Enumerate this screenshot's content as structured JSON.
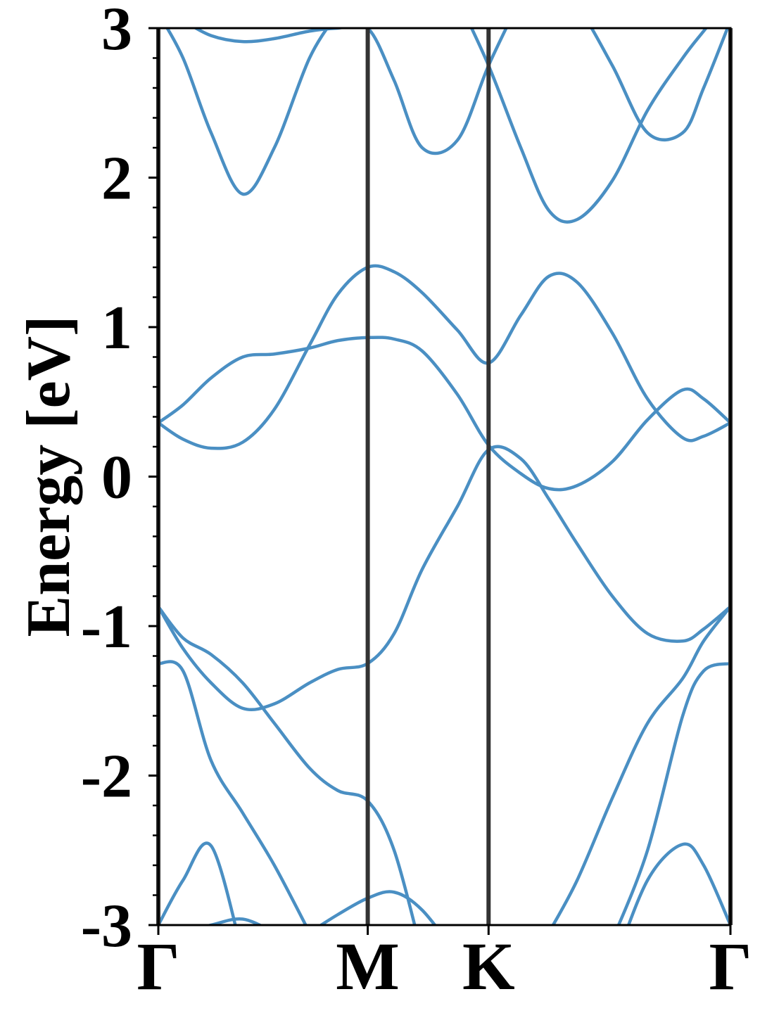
{
  "chart_data": {
    "type": "line",
    "ylabel": "Energy [eV]",
    "x": [
      0,
      0.118,
      0.252,
      0.403,
      0.554,
      0.722,
      0.857,
      1.0,
      1.126,
      1.26,
      1.428,
      1.577,
      1.731,
      1.865,
      2.0,
      2.168,
      2.336,
      2.504,
      2.604,
      2.732
    ],
    "xlim": [
      0,
      2.732
    ],
    "xticks": [
      {
        "value": 0,
        "label": "Γ"
      },
      {
        "value": 1.0,
        "label": "M"
      },
      {
        "value": 1.577,
        "label": "K"
      },
      {
        "value": 2.732,
        "label": "Γ"
      }
    ],
    "ylim": [
      -3,
      3
    ],
    "yticks": [
      -3,
      -2,
      -1,
      0,
      1,
      2,
      3
    ],
    "yminorticks": [
      -2.8,
      -2.6,
      -2.4,
      -2.2,
      -1.8,
      -1.6,
      -1.4,
      -1.2,
      -0.8,
      -0.6,
      -0.4,
      -0.2,
      0.2,
      0.4,
      0.6,
      0.8,
      1.2,
      1.4,
      1.6,
      1.8,
      2.2,
      2.4,
      2.6,
      2.8
    ],
    "line_color": "#333333",
    "series": [
      {
        "color": "#4a8fc3",
        "values": [
          0.36,
          0.25,
          0.19,
          0.23,
          0.45,
          0.88,
          1.22,
          1.4,
          1.37,
          1.23,
          0.98,
          0.76,
          1.08,
          1.34,
          1.3,
          0.96,
          0.52,
          0.26,
          0.27,
          0.36
        ]
      },
      {
        "color": "#4a8fc3",
        "values": [
          0.36,
          0.48,
          0.66,
          0.8,
          0.82,
          0.86,
          0.91,
          0.93,
          0.92,
          0.84,
          0.55,
          0.21,
          0.02,
          -0.08,
          -0.06,
          0.1,
          0.38,
          0.58,
          0.52,
          0.36
        ]
      },
      {
        "color": "#4a8fc3",
        "values": [
          -0.87,
          -1.08,
          -1.19,
          -1.38,
          -1.65,
          -1.95,
          -2.1,
          -2.17,
          -2.5,
          -3.2,
          null,
          null,
          null,
          null,
          null,
          null,
          null,
          null,
          null,
          null
        ]
      },
      {
        "color": "#4a8fc3",
        "values": [
          -0.87,
          -1.15,
          -1.38,
          -1.55,
          -1.52,
          -1.38,
          -1.29,
          -1.25,
          -1.05,
          -0.62,
          -0.2,
          0.18,
          0.12,
          -0.15,
          -0.45,
          -0.8,
          -1.05,
          -1.1,
          -1.02,
          -0.87
        ]
      },
      {
        "color": "#4a8fc3",
        "values": [
          -1.25,
          -1.3,
          -1.9,
          -2.25,
          -2.6,
          -3.05,
          null,
          null,
          null,
          null,
          null,
          null,
          null,
          null,
          null,
          -3.1,
          -2.5,
          -1.6,
          -1.3,
          -1.25
        ]
      },
      {
        "color": "#4a8fc3",
        "values": [
          null,
          null,
          null,
          null,
          null,
          null,
          null,
          null,
          null,
          null,
          null,
          null,
          null,
          -3.05,
          -2.7,
          -2.15,
          -1.65,
          -1.35,
          -1.1,
          -0.87
        ]
      },
      {
        "color": "#4a8fc3",
        "values": [
          -3.0,
          -2.7,
          -2.47,
          -3.2,
          null,
          null,
          null,
          null,
          null,
          null,
          null,
          null,
          null,
          null,
          null,
          null,
          null,
          null,
          null,
          null
        ]
      },
      {
        "color": "#4a8fc3",
        "values": [
          null,
          -3.05,
          -3.0,
          -2.96,
          -3.05,
          null,
          null,
          null,
          null,
          null,
          null,
          null,
          null,
          null,
          null,
          null,
          null,
          null,
          null,
          null
        ]
      },
      {
        "color": "#4a8fc3",
        "values": [
          null,
          null,
          null,
          null,
          null,
          -3.05,
          -2.93,
          -2.82,
          -2.78,
          -2.9,
          -3.2,
          null,
          null,
          null,
          null,
          null,
          null,
          null,
          null,
          null
        ]
      },
      {
        "color": "#4a8fc3",
        "values": [
          null,
          null,
          null,
          null,
          null,
          null,
          null,
          null,
          null,
          null,
          null,
          null,
          null,
          null,
          null,
          -3.3,
          -2.7,
          -2.46,
          -2.6,
          -3.0
        ]
      },
      {
        "color": "#4a8fc3",
        "values": [
          3.1,
          2.8,
          2.3,
          1.89,
          2.2,
          2.8,
          3.1,
          null,
          null,
          null,
          null,
          null,
          null,
          null,
          null,
          null,
          null,
          null,
          null,
          null
        ]
      },
      {
        "color": "#4a8fc3",
        "values": [
          null,
          3.05,
          2.95,
          2.91,
          2.93,
          2.98,
          3.0,
          3.0,
          2.65,
          2.2,
          2.25,
          2.75,
          3.2,
          null,
          null,
          null,
          null,
          null,
          null,
          null
        ]
      },
      {
        "color": "#4a8fc3",
        "values": [
          null,
          null,
          null,
          null,
          null,
          null,
          null,
          null,
          null,
          null,
          3.2,
          2.75,
          2.2,
          1.78,
          1.72,
          1.98,
          2.45,
          2.8,
          2.98,
          3.2
        ]
      },
      {
        "color": "#4a8fc3",
        "values": [
          null,
          null,
          null,
          null,
          null,
          null,
          null,
          null,
          null,
          null,
          null,
          null,
          null,
          3.3,
          3.15,
          2.75,
          2.3,
          2.3,
          2.6,
          3.05
        ]
      }
    ]
  }
}
